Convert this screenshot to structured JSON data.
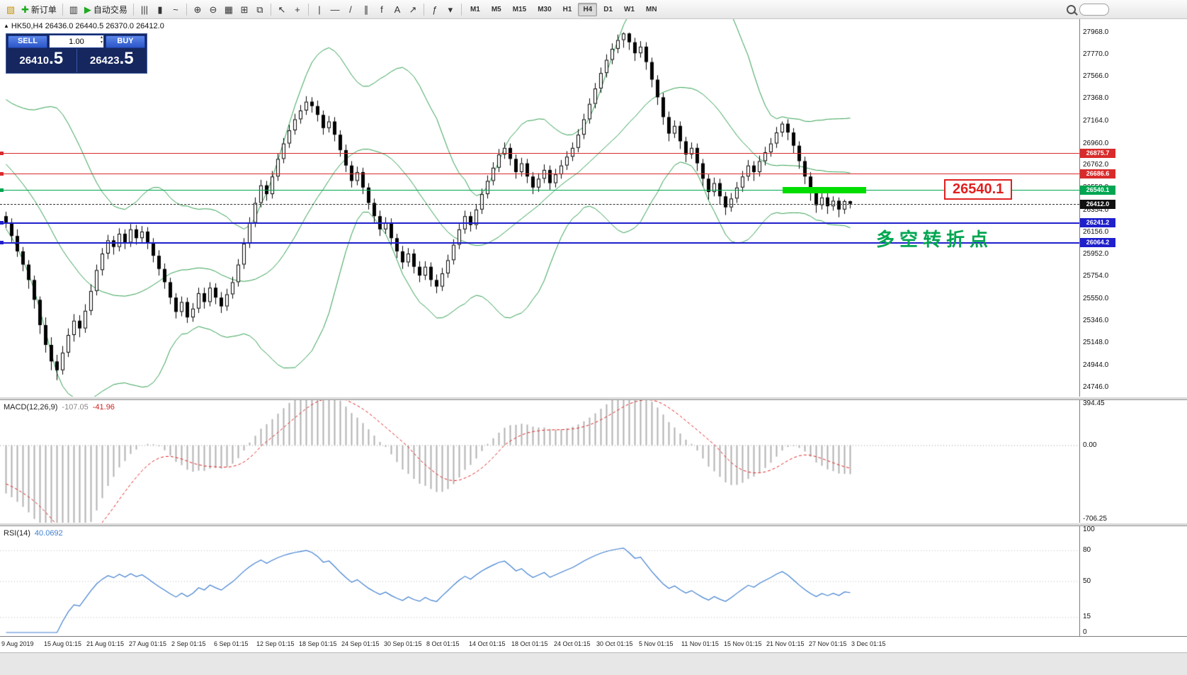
{
  "toolbar": {
    "groups": [
      {
        "items": [
          {
            "name": "new-chart-button",
            "glyph": "▧",
            "color": "#c8960c"
          },
          {
            "name": "new-order-button",
            "glyph": "✚",
            "color": "#1faa1f",
            "label": "新订单"
          }
        ]
      },
      {
        "items": [
          {
            "name": "profiles-button",
            "glyph": "▥"
          },
          {
            "name": "auto-trading-button",
            "glyph": "▶",
            "color": "#1faa1f",
            "label": "自动交易"
          }
        ]
      },
      {
        "items": [
          {
            "name": "bar-chart-button",
            "glyph": "|||"
          },
          {
            "name": "candlestick-chart-button",
            "glyph": "▮"
          },
          {
            "name": "line-chart-button",
            "glyph": "~"
          }
        ]
      },
      {
        "items": [
          {
            "name": "zoom-in-button",
            "glyph": "⊕"
          },
          {
            "name": "zoom-out-button",
            "glyph": "⊖"
          },
          {
            "name": "grid-button",
            "glyph": "▦"
          },
          {
            "name": "tile-windows-button",
            "glyph": "⊞"
          },
          {
            "name": "cascade-windows-button",
            "glyph": "⧉"
          }
        ]
      },
      {
        "items": [
          {
            "name": "cursor-button",
            "glyph": "↖"
          },
          {
            "name": "crosshair-button",
            "glyph": "+"
          }
        ]
      },
      {
        "items": [
          {
            "name": "vertical-line-button",
            "glyph": "|"
          },
          {
            "name": "horizontal-line-button",
            "glyph": "—"
          },
          {
            "name": "trendline-button",
            "glyph": "/"
          },
          {
            "name": "channel-button",
            "glyph": "∥"
          },
          {
            "name": "fibonacci-button",
            "glyph": "f"
          },
          {
            "name": "text-button",
            "glyph": "A"
          },
          {
            "name": "arrows-button",
            "glyph": "↗"
          }
        ]
      },
      {
        "items": [
          {
            "name": "indicators-button",
            "glyph": "ƒ"
          },
          {
            "name": "indicators-list-button",
            "glyph": "▾"
          }
        ]
      }
    ],
    "timeframes": [
      "M1",
      "M5",
      "M15",
      "M30",
      "H1",
      "H4",
      "D1",
      "W1",
      "MN"
    ],
    "active_timeframe": "H4"
  },
  "one_click": {
    "sell_label": "SELL",
    "buy_label": "BUY",
    "volume": "1.00",
    "sell_price_main": "26410",
    "sell_price_frac": ".5",
    "buy_price_main": "26423",
    "buy_price_frac": ".5"
  },
  "chart": {
    "symbol_line": "HK50,H4 26436.0 26440.5 26370.0 26412.0",
    "price_axis": [
      "27968.0",
      "27770.0",
      "27566.0",
      "27368.0",
      "27164.0",
      "26960.0",
      "26762.0",
      "26558.0",
      "26354.0",
      "26156.0",
      "25952.0",
      "25754.0",
      "25550.0",
      "25346.0",
      "25148.0",
      "24944.0",
      "24746.0"
    ],
    "time_axis": [
      "9 Aug 2019",
      "15 Aug 01:15",
      "21 Aug 01:15",
      "27 Aug 01:15",
      "2 Sep 01:15",
      "6 Sep 01:15",
      "12 Sep 01:15",
      "18 Sep 01:15",
      "24 Sep 01:15",
      "30 Sep 01:15",
      "8 Oct 01:15",
      "14 Oct 01:15",
      "18 Oct 01:15",
      "24 Oct 01:15",
      "30 Oct 01:15",
      "5 Nov 01:15",
      "11 Nov 01:15",
      "15 Nov 01:15",
      "21 Nov 01:15",
      "27 Nov 01:15",
      "3 Dec 01:15"
    ],
    "levels": [
      {
        "value": 26875.7,
        "label": "26875.7",
        "color": "#d92b2b",
        "thickness": 1
      },
      {
        "value": 26686.6,
        "label": "26686.6",
        "color": "#d92b2b",
        "thickness": 1
      },
      {
        "value": 26540.1,
        "label": "26540.1",
        "color": "#00a651",
        "thickness": 1
      },
      {
        "value": 26241.2,
        "label": "26241.2",
        "color": "#2020cc",
        "thickness": 2
      },
      {
        "value": 26064.2,
        "label": "26064.2",
        "color": "#2020cc",
        "thickness": 2
      }
    ],
    "current_price": {
      "value": 26412.0,
      "label": "26412.0",
      "color": "#111111"
    },
    "highlight_bar": {
      "value": 26540.1,
      "color": "#00dd00"
    },
    "highlight_label": "26540.1",
    "annotation": "多空转折点",
    "annotation_color": "#00a651"
  },
  "macd": {
    "name": "MACD(12,26,9)",
    "main_value": "-107.05",
    "signal_value": "-41.96",
    "axis": [
      {
        "value": 394.45,
        "label": "394.45"
      },
      {
        "value": 0,
        "label": "0.00"
      },
      {
        "value": -706.25,
        "label": "-706.25"
      }
    ],
    "hist_color": "#b2b2b2",
    "signal_color": "#e02020"
  },
  "rsi": {
    "name": "RSI(14)",
    "value": "40.0692",
    "axis": [
      {
        "value": 100,
        "label": "100"
      },
      {
        "value": 80,
        "label": "80"
      },
      {
        "value": 50,
        "label": "50"
      },
      {
        "value": 15,
        "label": "15"
      },
      {
        "value": 0,
        "label": "0"
      }
    ],
    "levels": [
      80,
      50,
      15
    ],
    "line_color": "#3f7fd0"
  },
  "chart_data": {
    "type": "candlestick",
    "symbol": "HK50",
    "timeframe": "H4",
    "title": "HK50,H4",
    "last_ohlc": {
      "open": 26436.0,
      "high": 26440.5,
      "low": 26370.0,
      "close": 26412.0
    },
    "ylim": [
      24660,
      28090
    ],
    "band_color": "#2f9e4f",
    "boll_period": 20,
    "warmup_closes": [
      27300,
      27250,
      27200,
      27150,
      27100,
      27050,
      27000,
      26950,
      26900,
      26850,
      26800,
      26750,
      26700,
      26650,
      26600,
      26550,
      26500,
      26450,
      26400,
      26350
    ],
    "ohlc": [
      [
        26300,
        26340,
        26190,
        26240
      ],
      [
        26240,
        26280,
        26060,
        26120
      ],
      [
        26120,
        26180,
        25930,
        25980
      ],
      [
        25980,
        26020,
        25800,
        25860
      ],
      [
        25860,
        25900,
        25640,
        25720
      ],
      [
        25720,
        25760,
        25460,
        25540
      ],
      [
        25540,
        25570,
        25230,
        25310
      ],
      [
        25310,
        25380,
        25060,
        25130
      ],
      [
        25130,
        25200,
        24900,
        24980
      ],
      [
        24980,
        25040,
        24810,
        24900
      ],
      [
        24900,
        25120,
        24860,
        25060
      ],
      [
        25060,
        25280,
        25020,
        25220
      ],
      [
        25220,
        25410,
        25160,
        25350
      ],
      [
        25350,
        25400,
        25200,
        25280
      ],
      [
        25280,
        25500,
        25240,
        25440
      ],
      [
        25440,
        25680,
        25400,
        25620
      ],
      [
        25620,
        25860,
        25580,
        25810
      ],
      [
        25810,
        26010,
        25760,
        25960
      ],
      [
        25960,
        26130,
        25910,
        26080
      ],
      [
        26080,
        26120,
        25950,
        26020
      ],
      [
        26020,
        26190,
        25980,
        26140
      ],
      [
        26140,
        26180,
        26000,
        26060
      ],
      [
        26060,
        26230,
        26020,
        26180
      ],
      [
        26180,
        26220,
        26040,
        26100
      ],
      [
        26100,
        26210,
        26060,
        26160
      ],
      [
        26160,
        26200,
        26000,
        26060
      ],
      [
        26060,
        26100,
        25880,
        25940
      ],
      [
        25940,
        25990,
        25760,
        25820
      ],
      [
        25820,
        25870,
        25640,
        25700
      ],
      [
        25700,
        25740,
        25500,
        25560
      ],
      [
        25560,
        25600,
        25370,
        25430
      ],
      [
        25430,
        25570,
        25390,
        25520
      ],
      [
        25520,
        25560,
        25330,
        25380
      ],
      [
        25380,
        25510,
        25340,
        25460
      ],
      [
        25460,
        25650,
        25420,
        25600
      ],
      [
        25600,
        25650,
        25460,
        25520
      ],
      [
        25520,
        25700,
        25480,
        25650
      ],
      [
        25650,
        25690,
        25500,
        25560
      ],
      [
        25560,
        25610,
        25420,
        25480
      ],
      [
        25480,
        25640,
        25440,
        25590
      ],
      [
        25590,
        25750,
        25550,
        25700
      ],
      [
        25700,
        25910,
        25660,
        25860
      ],
      [
        25860,
        26100,
        25820,
        26050
      ],
      [
        26050,
        26290,
        26010,
        26240
      ],
      [
        26240,
        26470,
        26200,
        26420
      ],
      [
        26420,
        26630,
        26380,
        26580
      ],
      [
        26580,
        26620,
        26440,
        26500
      ],
      [
        26500,
        26710,
        26460,
        26660
      ],
      [
        26660,
        26870,
        26620,
        26820
      ],
      [
        26820,
        27010,
        26780,
        26960
      ],
      [
        26960,
        27130,
        26920,
        27080
      ],
      [
        27080,
        27230,
        27040,
        27180
      ],
      [
        27180,
        27310,
        27140,
        27260
      ],
      [
        27260,
        27390,
        27220,
        27340
      ],
      [
        27340,
        27380,
        27240,
        27300
      ],
      [
        27300,
        27350,
        27160,
        27220
      ],
      [
        27220,
        27260,
        27040,
        27100
      ],
      [
        27100,
        27210,
        27060,
        27160
      ],
      [
        27160,
        27200,
        26980,
        27040
      ],
      [
        27040,
        27080,
        26840,
        26900
      ],
      [
        26900,
        26950,
        26700,
        26760
      ],
      [
        26760,
        26800,
        26560,
        26620
      ],
      [
        26620,
        26750,
        26580,
        26700
      ],
      [
        26700,
        26740,
        26500,
        26560
      ],
      [
        26560,
        26600,
        26360,
        26420
      ],
      [
        26420,
        26460,
        26240,
        26300
      ],
      [
        26300,
        26350,
        26120,
        26180
      ],
      [
        26180,
        26290,
        26140,
        26240
      ],
      [
        26240,
        26280,
        26040,
        26100
      ],
      [
        26100,
        26140,
        25920,
        25980
      ],
      [
        25980,
        26030,
        25820,
        25880
      ],
      [
        25880,
        26010,
        25840,
        25960
      ],
      [
        25960,
        26000,
        25780,
        25840
      ],
      [
        25840,
        25890,
        25700,
        25760
      ],
      [
        25760,
        25890,
        25720,
        25840
      ],
      [
        25840,
        25880,
        25660,
        25720
      ],
      [
        25720,
        25770,
        25600,
        25660
      ],
      [
        25660,
        25830,
        25620,
        25780
      ],
      [
        25780,
        25950,
        25740,
        25900
      ],
      [
        25900,
        26090,
        25860,
        26040
      ],
      [
        26040,
        26230,
        26000,
        26180
      ],
      [
        26180,
        26350,
        26140,
        26300
      ],
      [
        26300,
        26340,
        26160,
        26220
      ],
      [
        26220,
        26410,
        26180,
        26360
      ],
      [
        26360,
        26550,
        26320,
        26500
      ],
      [
        26500,
        26670,
        26460,
        26620
      ],
      [
        26620,
        26790,
        26580,
        26740
      ],
      [
        26740,
        26910,
        26700,
        26860
      ],
      [
        26860,
        26970,
        26820,
        26920
      ],
      [
        26920,
        26960,
        26760,
        26820
      ],
      [
        26820,
        26860,
        26640,
        26700
      ],
      [
        26700,
        26830,
        26660,
        26780
      ],
      [
        26780,
        26820,
        26600,
        26660
      ],
      [
        26660,
        26700,
        26500,
        26560
      ],
      [
        26560,
        26690,
        26520,
        26640
      ],
      [
        26640,
        26770,
        26600,
        26720
      ],
      [
        26720,
        26760,
        26540,
        26600
      ],
      [
        26600,
        26730,
        26560,
        26680
      ],
      [
        26680,
        26810,
        26640,
        26760
      ],
      [
        26760,
        26890,
        26720,
        26840
      ],
      [
        26840,
        26970,
        26800,
        26920
      ],
      [
        26920,
        27090,
        26880,
        27040
      ],
      [
        27040,
        27230,
        27000,
        27180
      ],
      [
        27180,
        27370,
        27140,
        27320
      ],
      [
        27320,
        27510,
        27280,
        27460
      ],
      [
        27460,
        27650,
        27420,
        27600
      ],
      [
        27600,
        27770,
        27560,
        27720
      ],
      [
        27720,
        27870,
        27680,
        27820
      ],
      [
        27820,
        27950,
        27780,
        27900
      ],
      [
        27900,
        27970,
        27830,
        27960
      ],
      [
        27960,
        27968,
        27810,
        27880
      ],
      [
        27880,
        27920,
        27710,
        27780
      ],
      [
        27780,
        27890,
        27740,
        27840
      ],
      [
        27840,
        27880,
        27630,
        27700
      ],
      [
        27700,
        27740,
        27470,
        27540
      ],
      [
        27540,
        27580,
        27310,
        27380
      ],
      [
        27380,
        27420,
        27130,
        27200
      ],
      [
        27200,
        27250,
        26980,
        27050
      ],
      [
        27050,
        27170,
        27010,
        27120
      ],
      [
        27120,
        27160,
        26910,
        26980
      ],
      [
        26980,
        27020,
        26790,
        26860
      ],
      [
        26860,
        26970,
        26820,
        26920
      ],
      [
        26920,
        26960,
        26710,
        26780
      ],
      [
        26780,
        26820,
        26570,
        26640
      ],
      [
        26640,
        26680,
        26450,
        26520
      ],
      [
        26520,
        26650,
        26480,
        26600
      ],
      [
        26600,
        26640,
        26410,
        26480
      ],
      [
        26480,
        26520,
        26310,
        26380
      ],
      [
        26380,
        26510,
        26340,
        26460
      ],
      [
        26460,
        26610,
        26420,
        26560
      ],
      [
        26560,
        26710,
        26520,
        26660
      ],
      [
        26660,
        26810,
        26620,
        26760
      ],
      [
        26760,
        26800,
        26620,
        26700
      ],
      [
        26700,
        26850,
        26660,
        26800
      ],
      [
        26800,
        26930,
        26760,
        26880
      ],
      [
        26880,
        27010,
        26840,
        26960
      ],
      [
        26960,
        27110,
        26920,
        27060
      ],
      [
        27060,
        27160,
        27020,
        27140
      ],
      [
        27140,
        27180,
        26990,
        27060
      ],
      [
        27060,
        27100,
        26870,
        26940
      ],
      [
        26940,
        26980,
        26730,
        26800
      ],
      [
        26800,
        26840,
        26590,
        26660
      ],
      [
        26660,
        26700,
        26440,
        26520
      ],
      [
        26520,
        26560,
        26330,
        26400
      ],
      [
        26400,
        26520,
        26360,
        26470
      ],
      [
        26470,
        26510,
        26320,
        26390
      ],
      [
        26390,
        26480,
        26350,
        26440
      ],
      [
        26440,
        26470,
        26290,
        26360
      ],
      [
        26360,
        26450,
        26320,
        26436
      ],
      [
        26436,
        26440.5,
        26370,
        26412
      ]
    ]
  }
}
